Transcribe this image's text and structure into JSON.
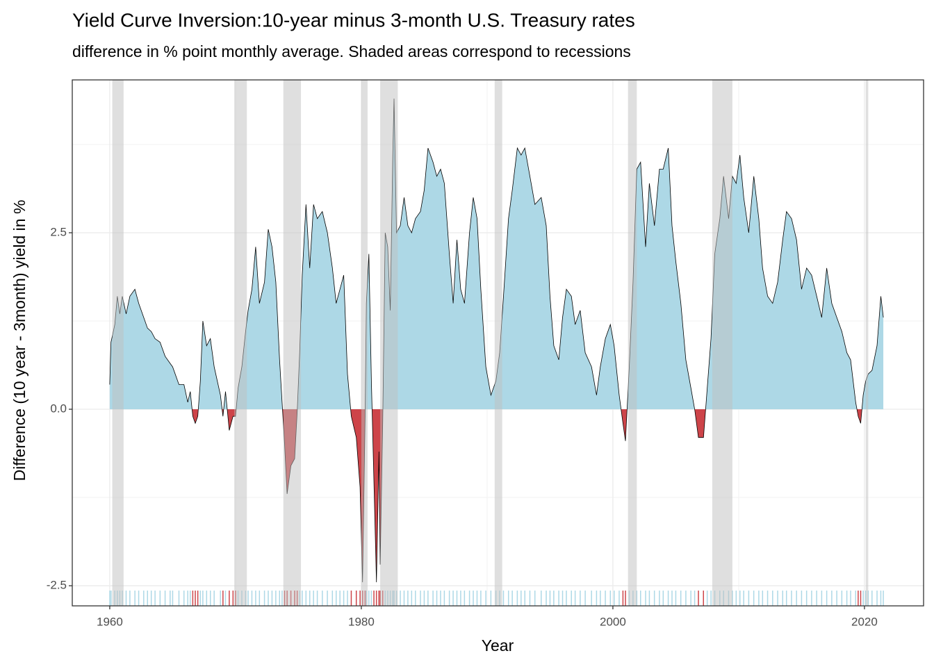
{
  "chart_data": {
    "type": "area",
    "title": "Yield Curve Inversion:10-year minus 3-month U.S. Treasury rates",
    "subtitle": "difference in % point monthly average. Shaded areas correspond to recessions",
    "x_label": "Year",
    "y_label": "Difference (10 year - 3month) yield in %",
    "positive_color": "#add8e6",
    "negative_color": "#cd4449",
    "recession_color": "#bfbfbf",
    "grid": true,
    "xlim": [
      1957.02,
      2024.7
    ],
    "ylim": [
      -2.785,
      4.665
    ],
    "xticks": [
      1960,
      1980,
      2000,
      2020
    ],
    "yticks": [
      -2.5,
      {
        "value": 0,
        "label": "0.0"
      },
      2.5
    ],
    "recessions": [
      [
        1960.2,
        1961.1
      ],
      [
        1969.9,
        1970.9
      ],
      [
        1973.8,
        1975.2
      ],
      [
        1980.0,
        1980.5
      ],
      [
        1981.5,
        1982.9
      ],
      [
        1990.6,
        1991.2
      ],
      [
        2001.2,
        2001.9
      ],
      [
        2007.9,
        2009.5
      ],
      [
        2020.1,
        2020.3
      ]
    ],
    "x": [
      1960.0,
      1960.1,
      1960.4,
      1960.6,
      1960.8,
      1961.0,
      1961.3,
      1961.6,
      1962.0,
      1962.3,
      1962.7,
      1963.0,
      1963.3,
      1963.6,
      1964.0,
      1964.4,
      1964.8,
      1965.0,
      1965.5,
      1965.9,
      1966.2,
      1966.4,
      1966.6,
      1966.8,
      1967.0,
      1967.2,
      1967.4,
      1967.7,
      1968.0,
      1968.3,
      1968.8,
      1969.0,
      1969.2,
      1969.5,
      1969.8,
      1970.0,
      1970.2,
      1970.5,
      1970.8,
      1971.0,
      1971.3,
      1971.6,
      1971.9,
      1972.3,
      1972.6,
      1972.9,
      1973.2,
      1973.5,
      1973.7,
      1973.9,
      1974.1,
      1974.4,
      1974.7,
      1974.9,
      1975.1,
      1975.3,
      1975.6,
      1975.9,
      1976.2,
      1976.5,
      1976.9,
      1977.3,
      1977.7,
      1978.0,
      1978.3,
      1978.6,
      1978.9,
      1979.2,
      1979.6,
      1979.9,
      1980.1,
      1980.3,
      1980.4,
      1980.6,
      1980.8,
      1981.0,
      1981.2,
      1981.4,
      1981.5,
      1981.7,
      1981.9,
      1982.1,
      1982.3,
      1982.5,
      1982.6,
      1982.8,
      1983.1,
      1983.4,
      1983.7,
      1984.0,
      1984.3,
      1984.7,
      1985.0,
      1985.3,
      1985.7,
      1986.0,
      1986.3,
      1986.6,
      1987.0,
      1987.3,
      1987.6,
      1987.9,
      1988.2,
      1988.6,
      1988.9,
      1989.2,
      1989.5,
      1989.9,
      1990.3,
      1990.7,
      1991.0,
      1991.3,
      1991.7,
      1992.0,
      1992.4,
      1992.7,
      1993.0,
      1993.4,
      1993.8,
      1994.3,
      1994.7,
      1995.0,
      1995.3,
      1995.7,
      1996.0,
      1996.3,
      1996.7,
      1997.0,
      1997.4,
      1997.8,
      1998.3,
      1998.7,
      1999.0,
      1999.4,
      1999.8,
      2000.1,
      2000.5,
      2000.8,
      2001.0,
      2001.3,
      2001.6,
      2001.9,
      2002.2,
      2002.6,
      2002.9,
      2003.3,
      2003.7,
      2004.0,
      2004.4,
      2004.7,
      2005.0,
      2005.4,
      2005.8,
      2006.2,
      2006.5,
      2006.8,
      2007.2,
      2007.5,
      2007.8,
      2008.1,
      2008.5,
      2008.8,
      2009.2,
      2009.5,
      2009.8,
      2010.1,
      2010.4,
      2010.8,
      2011.2,
      2011.6,
      2011.9,
      2012.3,
      2012.7,
      2013.1,
      2013.5,
      2013.8,
      2014.2,
      2014.6,
      2015.0,
      2015.4,
      2015.8,
      2016.2,
      2016.6,
      2017.0,
      2017.4,
      2017.8,
      2018.2,
      2018.6,
      2018.9,
      2019.3,
      2019.5,
      2019.7,
      2019.9,
      2020.1,
      2020.3,
      2020.6,
      2021.0,
      2021.3,
      2021.5
    ],
    "values": [
      0.35,
      0.95,
      1.2,
      1.6,
      1.35,
      1.6,
      1.35,
      1.6,
      1.7,
      1.5,
      1.3,
      1.15,
      1.1,
      1.0,
      0.95,
      0.75,
      0.65,
      0.6,
      0.35,
      0.35,
      0.1,
      0.25,
      -0.1,
      -0.2,
      -0.1,
      0.4,
      1.25,
      0.9,
      1.0,
      0.6,
      0.2,
      -0.1,
      0.25,
      -0.3,
      -0.1,
      -0.1,
      0.3,
      0.6,
      1.1,
      1.4,
      1.7,
      2.3,
      1.5,
      1.8,
      2.55,
      2.3,
      1.8,
      0.7,
      0.1,
      -0.5,
      -1.2,
      -0.8,
      -0.7,
      -0.05,
      0.8,
      1.9,
      2.9,
      2.0,
      2.9,
      2.7,
      2.8,
      2.5,
      2.0,
      1.5,
      1.7,
      1.9,
      0.5,
      -0.1,
      -0.4,
      -1.1,
      -2.45,
      -0.1,
      1.5,
      2.2,
      0.4,
      -1.0,
      -2.45,
      -0.6,
      -2.2,
      -0.2,
      2.5,
      2.3,
      1.4,
      3.6,
      4.4,
      2.5,
      2.6,
      3.0,
      2.6,
      2.5,
      2.7,
      2.8,
      3.1,
      3.7,
      3.5,
      3.3,
      3.4,
      3.2,
      2.2,
      1.5,
      2.4,
      1.7,
      1.5,
      2.5,
      3.0,
      2.7,
      1.7,
      0.6,
      0.2,
      0.4,
      0.8,
      1.6,
      2.7,
      3.1,
      3.7,
      3.6,
      3.7,
      3.3,
      2.9,
      3.0,
      2.6,
      1.6,
      0.9,
      0.7,
      1.3,
      1.7,
      1.6,
      1.2,
      1.4,
      0.8,
      0.6,
      0.2,
      0.6,
      1.0,
      1.2,
      0.9,
      0.2,
      -0.2,
      -0.45,
      0.6,
      1.8,
      3.4,
      3.5,
      2.3,
      3.2,
      2.6,
      3.4,
      3.4,
      3.7,
      2.6,
      2.1,
      1.5,
      0.7,
      0.3,
      0.0,
      -0.4,
      -0.4,
      0.3,
      1.0,
      2.2,
      2.7,
      3.3,
      2.7,
      3.3,
      3.2,
      3.6,
      3.0,
      2.5,
      3.3,
      2.7,
      2.0,
      1.6,
      1.5,
      1.8,
      2.4,
      2.8,
      2.7,
      2.4,
      1.7,
      2.0,
      1.9,
      1.6,
      1.3,
      2.0,
      1.5,
      1.3,
      1.1,
      0.8,
      0.7,
      0.1,
      -0.1,
      -0.2,
      0.2,
      0.4,
      0.5,
      0.55,
      0.9,
      1.6,
      1.3
    ]
  }
}
